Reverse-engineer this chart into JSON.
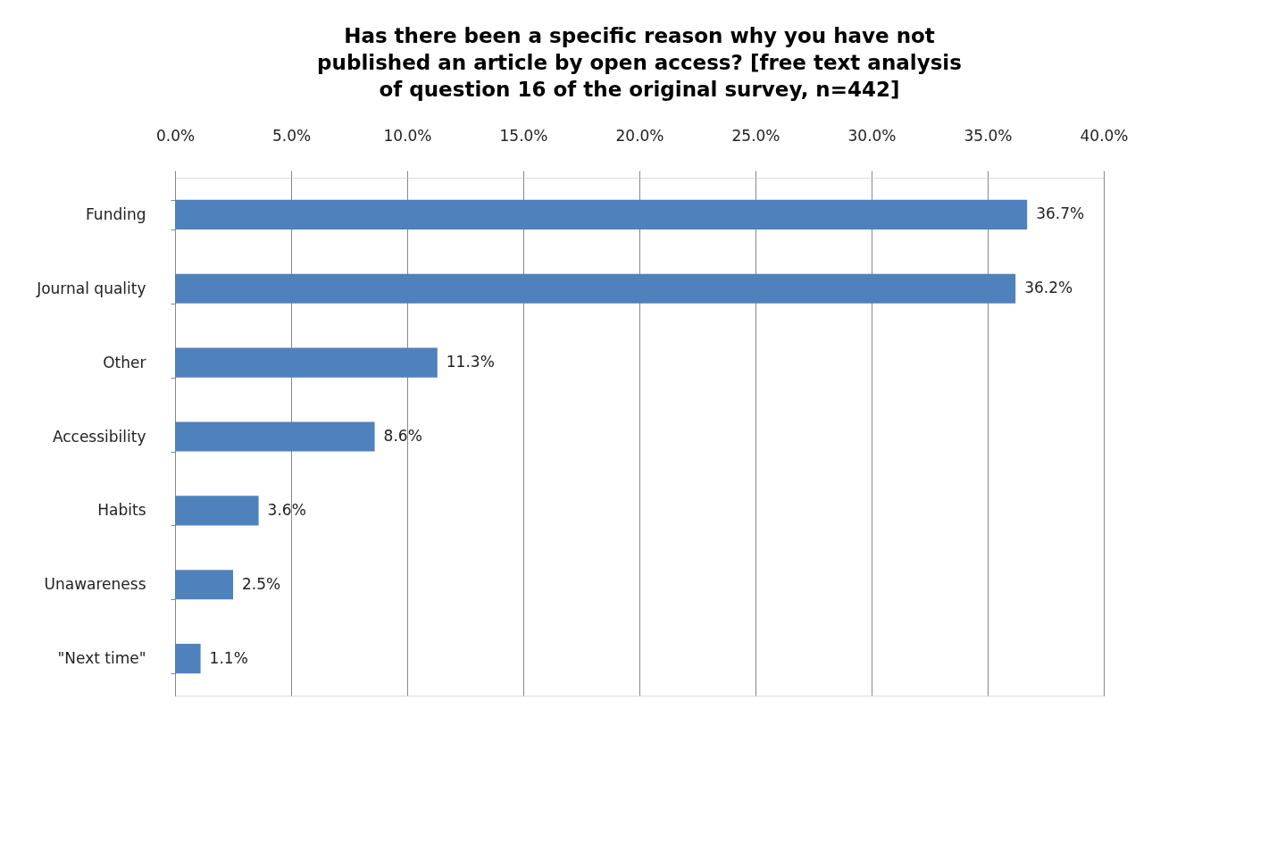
{
  "chart_data": {
    "type": "bar",
    "orientation": "horizontal",
    "title": "Has there been a specific reason why you have not\npublished an article by open access? [free text analysis\nof question 16 of the original survey, n=442]",
    "categories": [
      "Funding",
      "Journal quality",
      "Other",
      "Accessibility",
      "Habits",
      "Unawareness",
      "\"Next time\""
    ],
    "values": [
      36.7,
      36.2,
      11.3,
      8.6,
      3.6,
      2.5,
      1.1
    ],
    "value_labels": [
      "36.7%",
      "36.2%",
      "11.3%",
      "8.6%",
      "3.6%",
      "2.5%",
      "1.1%"
    ],
    "color": "#4f81bd",
    "xlim": [
      0,
      40
    ],
    "xticks": [
      {
        "value": 0,
        "label": "0.0%"
      },
      {
        "value": 5,
        "label": "5.0%"
      },
      {
        "value": 10,
        "label": "10.0%"
      },
      {
        "value": 15,
        "label": "15.0%"
      },
      {
        "value": 20,
        "label": "20.0%"
      },
      {
        "value": 25,
        "label": "25.0%"
      },
      {
        "value": 30,
        "label": "30.0%"
      },
      {
        "value": 35,
        "label": "35.0%"
      },
      {
        "value": 40,
        "label": "40.0%"
      }
    ],
    "grid": "x"
  }
}
